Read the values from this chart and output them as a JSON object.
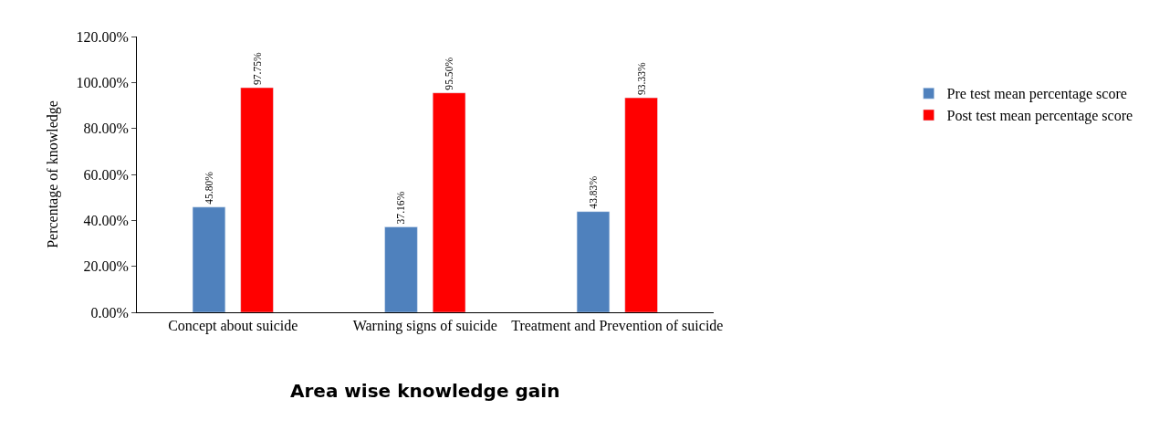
{
  "chart_data": {
    "type": "bar",
    "title": "Area wise knowledge gain",
    "ylabel": "Percentage of knowledge",
    "categories": [
      "Concept about suicide",
      "Warning signs of suicide",
      "Treatment and Prevention of suicide"
    ],
    "series": [
      {
        "name": "Pre test mean percentage score",
        "color": "#4f81bd",
        "values": [
          45.8,
          37.16,
          43.83
        ],
        "value_labels": [
          "45.80%",
          "37.16%",
          "43.83%"
        ]
      },
      {
        "name": "Post test mean percentage score",
        "color": "#ff0000",
        "values": [
          97.75,
          95.5,
          93.33
        ],
        "value_labels": [
          "97.75%",
          "95.50%",
          "93.33%"
        ]
      }
    ],
    "ylim": [
      0,
      120
    ],
    "yticks": [
      {
        "value": 0,
        "label": "0.00%"
      },
      {
        "value": 20,
        "label": "20.00%"
      },
      {
        "value": 40,
        "label": "40.00%"
      },
      {
        "value": 60,
        "label": "60.00%"
      },
      {
        "value": 80,
        "label": "80.00%"
      },
      {
        "value": 100,
        "label": "100.00%"
      },
      {
        "value": 120,
        "label": "120.00%"
      }
    ],
    "legend": "right"
  }
}
